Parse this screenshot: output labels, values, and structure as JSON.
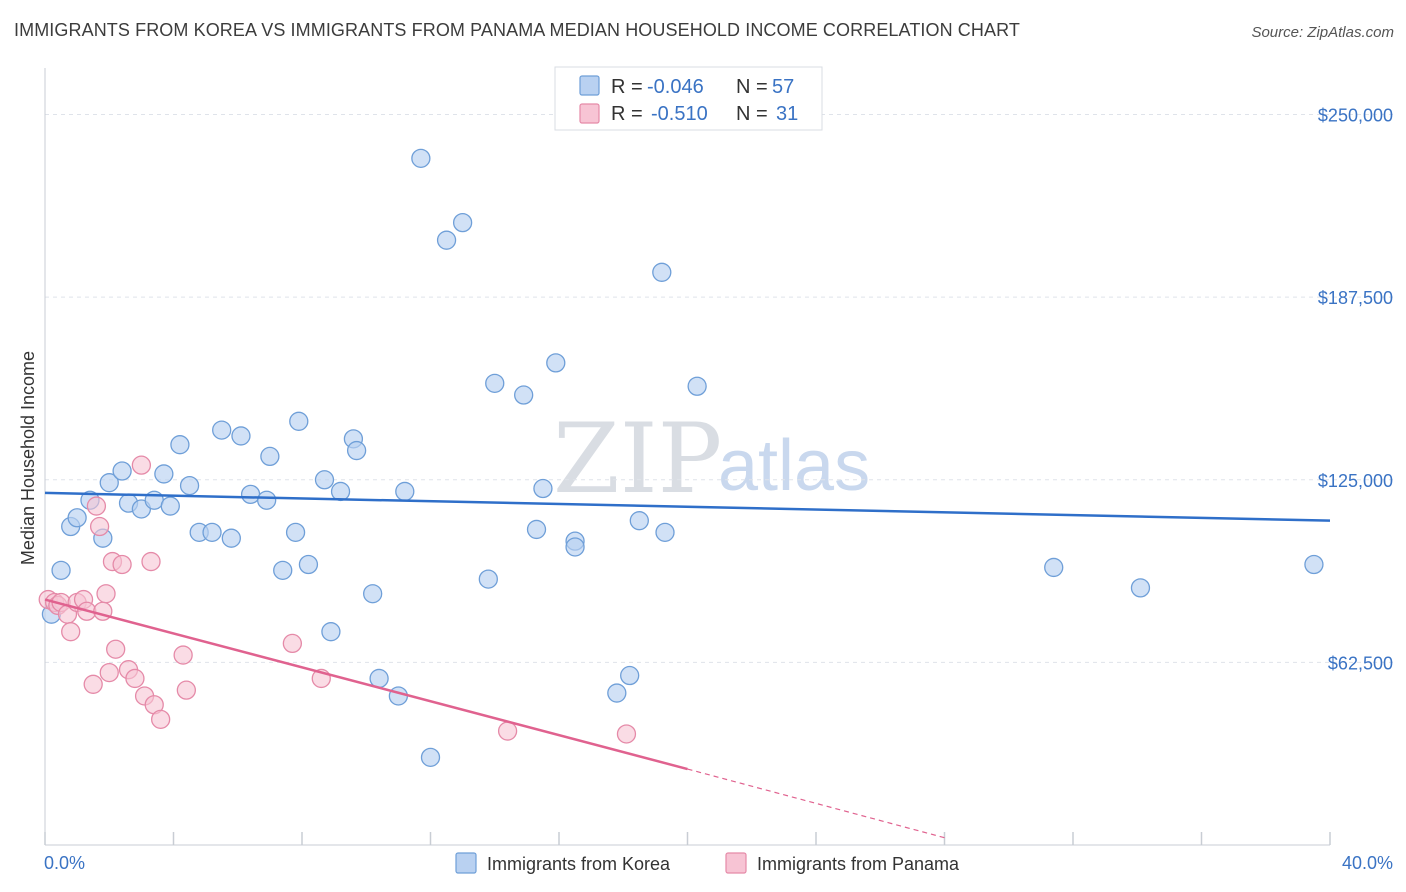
{
  "title": "IMMIGRANTS FROM KOREA VS IMMIGRANTS FROM PANAMA MEDIAN HOUSEHOLD INCOME CORRELATION CHART",
  "source": "Source: ZipAtlas.com",
  "watermark": {
    "zip": "ZIP",
    "atlas": "atlas"
  },
  "legend": {
    "korea": {
      "r_label": "R =",
      "r_value": "-0.046",
      "n_label": "N =",
      "n_value": "57"
    },
    "panama": {
      "r_label": "R =",
      "r_value": "-0.510",
      "n_label": "N =",
      "n_value": "31"
    }
  },
  "bottom_legend": {
    "korea": "Immigrants from Korea",
    "panama": "Immigrants from Panama"
  },
  "colors": {
    "korea_fill": "#b9d1f1",
    "korea_stroke": "#6f9fd8",
    "korea_line": "#2f6fc9",
    "panama_fill": "#f7c4d4",
    "panama_stroke": "#e58aa8",
    "panama_line": "#e0628f",
    "grid": "#dfe3ea",
    "axis_label": "#3a73c4"
  },
  "chart_data": {
    "type": "scatter",
    "title": "IMMIGRANTS FROM KOREA VS IMMIGRANTS FROM PANAMA MEDIAN HOUSEHOLD INCOME CORRELATION CHART",
    "xlabel": "",
    "ylabel": "Median Household Income",
    "xlim": [
      0,
      40
    ],
    "ylim": [
      0,
      262500
    ],
    "x_tick_labels": [
      "0.0%",
      "40.0%"
    ],
    "y_ticks": [
      62500,
      125000,
      187500,
      250000
    ],
    "y_tick_labels": [
      "$62,500",
      "$125,000",
      "$187,500",
      "$250,000"
    ],
    "grid": true,
    "legend_position": "top-center",
    "series": [
      {
        "name": "Immigrants from Korea",
        "points": [
          [
            0.2,
            79000
          ],
          [
            0.5,
            94000
          ],
          [
            0.8,
            109000
          ],
          [
            1.0,
            112000
          ],
          [
            1.4,
            118000
          ],
          [
            1.8,
            105000
          ],
          [
            2.0,
            124000
          ],
          [
            2.4,
            128000
          ],
          [
            2.6,
            117000
          ],
          [
            3.0,
            115000
          ],
          [
            3.4,
            118000
          ],
          [
            3.7,
            127000
          ],
          [
            3.9,
            116000
          ],
          [
            4.2,
            137000
          ],
          [
            4.5,
            123000
          ],
          [
            4.8,
            107000
          ],
          [
            5.2,
            107000
          ],
          [
            5.5,
            142000
          ],
          [
            5.8,
            105000
          ],
          [
            6.1,
            140000
          ],
          [
            6.4,
            120000
          ],
          [
            6.9,
            118000
          ],
          [
            7.0,
            133000
          ],
          [
            7.4,
            94000
          ],
          [
            7.8,
            107000
          ],
          [
            7.9,
            145000
          ],
          [
            8.2,
            96000
          ],
          [
            8.7,
            125000
          ],
          [
            8.9,
            73000
          ],
          [
            9.2,
            121000
          ],
          [
            9.6,
            139000
          ],
          [
            9.7,
            135000
          ],
          [
            10.2,
            86000
          ],
          [
            10.4,
            57000
          ],
          [
            11.0,
            51000
          ],
          [
            11.2,
            121000
          ],
          [
            11.7,
            235000
          ],
          [
            12.0,
            30000
          ],
          [
            12.5,
            207000
          ],
          [
            13.0,
            213000
          ],
          [
            13.8,
            91000
          ],
          [
            14.0,
            158000
          ],
          [
            14.9,
            154000
          ],
          [
            15.3,
            108000
          ],
          [
            15.5,
            122000
          ],
          [
            15.9,
            165000
          ],
          [
            16.5,
            104000
          ],
          [
            16.5,
            102000
          ],
          [
            17.8,
            52000
          ],
          [
            18.2,
            58000
          ],
          [
            18.5,
            111000
          ],
          [
            19.2,
            196000
          ],
          [
            19.3,
            107000
          ],
          [
            20.3,
            157000
          ],
          [
            31.4,
            95000
          ],
          [
            34.1,
            88000
          ],
          [
            39.5,
            96000
          ]
        ]
      },
      {
        "name": "Immigrants from Panama",
        "points": [
          [
            0.1,
            84000
          ],
          [
            0.3,
            83000
          ],
          [
            0.4,
            82000
          ],
          [
            0.5,
            83000
          ],
          [
            0.7,
            79000
          ],
          [
            0.8,
            73000
          ],
          [
            1.0,
            83000
          ],
          [
            1.2,
            84000
          ],
          [
            1.3,
            80000
          ],
          [
            1.5,
            55000
          ],
          [
            1.6,
            116000
          ],
          [
            1.7,
            109000
          ],
          [
            1.8,
            80000
          ],
          [
            1.9,
            86000
          ],
          [
            2.0,
            59000
          ],
          [
            2.1,
            97000
          ],
          [
            2.2,
            67000
          ],
          [
            2.4,
            96000
          ],
          [
            2.6,
            60000
          ],
          [
            2.8,
            57000
          ],
          [
            3.0,
            130000
          ],
          [
            3.1,
            51000
          ],
          [
            3.3,
            97000
          ],
          [
            3.4,
            48000
          ],
          [
            3.6,
            43000
          ],
          [
            4.3,
            65000
          ],
          [
            4.4,
            53000
          ],
          [
            7.7,
            69000
          ],
          [
            8.6,
            57000
          ],
          [
            14.4,
            39000
          ],
          [
            18.1,
            38000
          ]
        ]
      }
    ],
    "trend_lines": [
      {
        "name": "Immigrants from Korea",
        "x": [
          0,
          40
        ],
        "y": [
          120500,
          111000
        ]
      },
      {
        "name": "Immigrants from Panama",
        "x": [
          0,
          20
        ],
        "y": [
          84000,
          26000
        ],
        "dashed_extension_to": [
          28,
          2500
        ]
      }
    ]
  }
}
